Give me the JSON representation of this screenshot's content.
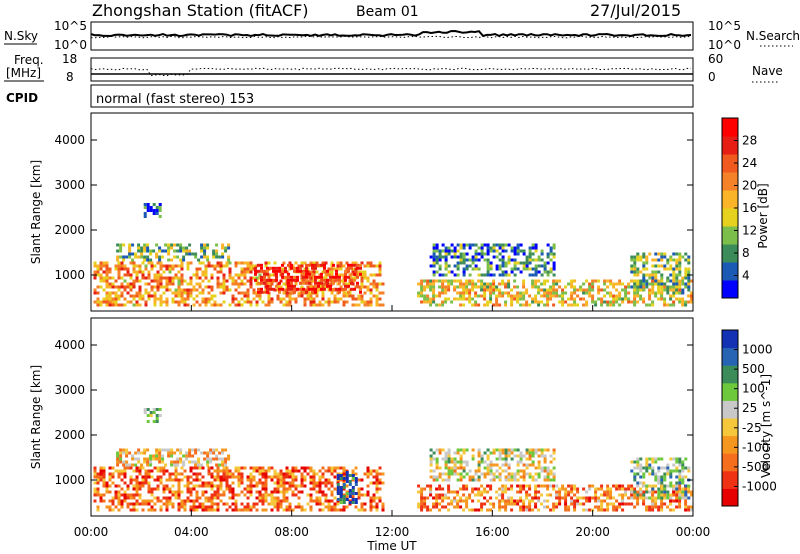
{
  "header": {
    "station": "Zhongshan Station (fitACF)",
    "beam": "Beam 01",
    "date": "27/Jul/2015"
  },
  "strips": {
    "nsky": {
      "label": "N.Sky",
      "ticks": [
        "10^5",
        "10^0"
      ]
    },
    "nsearch": {
      "label": "N.Search",
      "ticks": [
        "10^5",
        "10^0"
      ]
    },
    "freq": {
      "label_line1": "Freq.",
      "label_line2": "[MHz]",
      "ticks": [
        "18",
        "8"
      ]
    },
    "nave": {
      "label": "Nave",
      "ticks": [
        "60",
        "0"
      ]
    },
    "cpid": {
      "label": "CPID",
      "value": "normal (fast stereo) 153"
    }
  },
  "colors": {
    "power_scale": [
      "#0000ff",
      "#1a5ab4",
      "#3c8c5a",
      "#7cbe4a",
      "#e6d21e",
      "#fab428",
      "#f58228",
      "#f05a1e",
      "#e61e14",
      "#ff0000"
    ],
    "velocity_scale": [
      "#e60000",
      "#f03214",
      "#f56e1e",
      "#f5961e",
      "#f5c83c",
      "#c8c8c8",
      "#6ec83c",
      "#3c8c5a",
      "#2864b4",
      "#1432b4"
    ]
  },
  "chart_data": [
    {
      "type": "heatmap",
      "quantity": "power",
      "ylabel": "Slant Range [km]",
      "yticks": [
        "4000",
        "3000",
        "2000",
        "1000"
      ],
      "ylim": [
        200,
        4600
      ],
      "xlim_hours": [
        0,
        24
      ],
      "colorbar_label": "Power [dB]",
      "colorbar_ticks": [
        "28",
        "24",
        "20",
        "16",
        "12",
        "8",
        "4"
      ],
      "colorbar_range": [
        0,
        32
      ],
      "echo_regions": [
        {
          "t0": 0.1,
          "t1": 11.7,
          "r0": 350,
          "r1": 1300,
          "level": 0.62
        },
        {
          "t0": 6.5,
          "t1": 10.8,
          "r0": 600,
          "r1": 1250,
          "level": 0.88
        },
        {
          "t0": 1.0,
          "t1": 5.5,
          "r0": 1300,
          "r1": 1700,
          "level": 0.35
        },
        {
          "t0": 2.1,
          "t1": 2.7,
          "r0": 2300,
          "r1": 2600,
          "level": 0.15
        },
        {
          "t0": 13.0,
          "t1": 24.0,
          "r0": 300,
          "r1": 900,
          "level": 0.5
        },
        {
          "t0": 13.5,
          "t1": 18.5,
          "r0": 1000,
          "r1": 1700,
          "level": 0.22
        },
        {
          "t0": 21.5,
          "t1": 23.8,
          "r0": 600,
          "r1": 1500,
          "level": 0.35
        }
      ]
    },
    {
      "type": "heatmap",
      "quantity": "velocity",
      "ylabel": "Slant Range [km]",
      "yticks": [
        "4000",
        "3000",
        "2000",
        "1000"
      ],
      "ylim": [
        200,
        4600
      ],
      "xlim_hours": [
        0,
        24
      ],
      "xticks": [
        "00:00",
        "04:00",
        "08:00",
        "12:00",
        "16:00",
        "20:00",
        "00:00"
      ],
      "xlabel": "Time UT",
      "colorbar_label": "Velocity [m s^-1]",
      "colorbar_ticks": [
        "1000",
        "500",
        "100",
        "25",
        "-25",
        "-100",
        "-500",
        "-1000"
      ],
      "echo_regions": [
        {
          "t0": 0.1,
          "t1": 11.7,
          "r0": 350,
          "r1": 1300,
          "level": 0.25
        },
        {
          "t0": 1.0,
          "t1": 5.5,
          "r0": 1300,
          "r1": 1700,
          "level": 0.45
        },
        {
          "t0": 2.1,
          "t1": 2.7,
          "r0": 2300,
          "r1": 2600,
          "level": 0.6
        },
        {
          "t0": 9.8,
          "t1": 10.6,
          "r0": 500,
          "r1": 1200,
          "level": 0.9
        },
        {
          "t0": 13.0,
          "t1": 24.0,
          "r0": 300,
          "r1": 900,
          "level": 0.3
        },
        {
          "t0": 13.5,
          "t1": 18.5,
          "r0": 1000,
          "r1": 1700,
          "level": 0.5
        },
        {
          "t0": 21.5,
          "t1": 23.8,
          "r0": 600,
          "r1": 1500,
          "level": 0.65
        }
      ]
    }
  ]
}
